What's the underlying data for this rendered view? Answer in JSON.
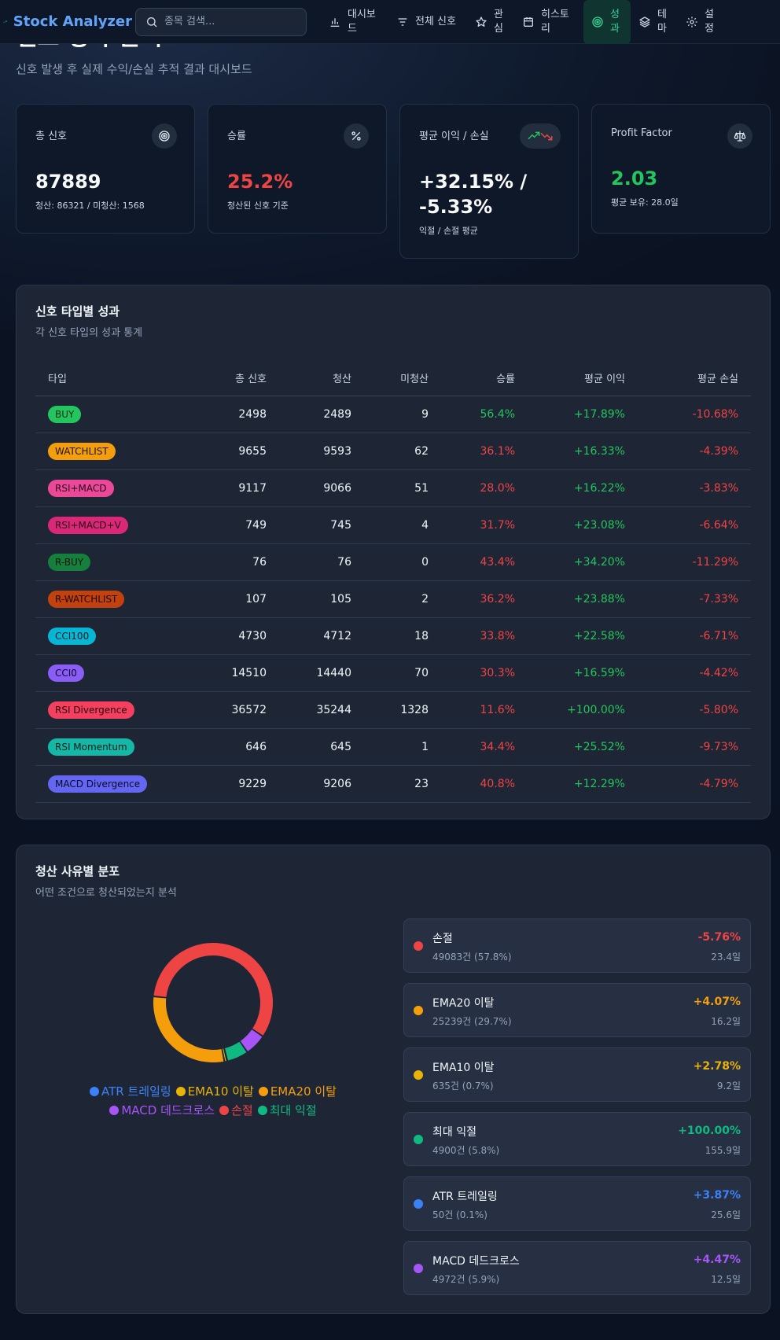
{
  "header": {
    "brand": "Stock Analyzer",
    "search_placeholder": "종목 검색...",
    "nav": [
      "대시보드",
      "전체 신호",
      "관심",
      "히스토리",
      "성과",
      "테마",
      "설정"
    ]
  },
  "page": {
    "title": "신호 성과 분석",
    "subtitle": "신호 발생 후 실제 수익/손실 추적 결과 대시보드"
  },
  "stats": [
    {
      "label": "총 신호",
      "value": "87889",
      "sub": "청산: 86321 / 미청산: 1568",
      "color": "#f8fafc",
      "icon": "target-icon"
    },
    {
      "label": "승률",
      "value": "25.2%",
      "sub": "청산된 신호 기준",
      "color": "#ef4444",
      "icon": "percent-icon"
    },
    {
      "label": "평균 이익 / 손실",
      "value": "+32.15% / -5.33%",
      "sub": "익절 / 손절 평균",
      "color": "#f8fafc",
      "icon": "trend-up-down-icon"
    },
    {
      "label": "Profit Factor",
      "value": "2.03",
      "sub": "평균 보유: 28.0일",
      "color": "#22c55e",
      "icon": "scale-icon"
    }
  ],
  "signal_table": {
    "title": "신호 타입별 성과",
    "subtitle": "각 신호 타입의 성과 통계",
    "columns": [
      "타입",
      "총 신호",
      "청산",
      "미청산",
      "승률",
      "평균 이익",
      "평균 손실"
    ],
    "rows": [
      {
        "type": "BUY",
        "badge_bg": "#22c55e",
        "badge_fg": "#052e16",
        "total": "2498",
        "closed": "2489",
        "open": "9",
        "win": "56.4%",
        "win_pos": true,
        "avg_gain": "+17.89%",
        "avg_loss": "-10.68%"
      },
      {
        "type": "WATCHLIST",
        "badge_bg": "#f59e0b",
        "badge_fg": "#1f1300",
        "total": "9655",
        "closed": "9593",
        "open": "62",
        "win": "36.1%",
        "win_pos": false,
        "avg_gain": "+16.33%",
        "avg_loss": "-4.39%"
      },
      {
        "type": "RSI+MACD",
        "badge_bg": "#ec4899",
        "badge_fg": "#2a0616",
        "total": "9117",
        "closed": "9066",
        "open": "51",
        "win": "28.0%",
        "win_pos": false,
        "avg_gain": "+16.22%",
        "avg_loss": "-3.83%"
      },
      {
        "type": "RSI+MACD+V",
        "badge_bg": "#db2777",
        "badge_fg": "#2a0616",
        "total": "749",
        "closed": "745",
        "open": "4",
        "win": "31.7%",
        "win_pos": false,
        "avg_gain": "+23.08%",
        "avg_loss": "-6.64%"
      },
      {
        "type": "R-BUY",
        "badge_bg": "#15803d",
        "badge_fg": "#03140a",
        "total": "76",
        "closed": "76",
        "open": "0",
        "win": "43.4%",
        "win_pos": false,
        "avg_gain": "+34.20%",
        "avg_loss": "-11.29%"
      },
      {
        "type": "R-WATCHLIST",
        "badge_bg": "#c2410c",
        "badge_fg": "#1f0800",
        "total": "107",
        "closed": "105",
        "open": "2",
        "win": "36.2%",
        "win_pos": false,
        "avg_gain": "+23.88%",
        "avg_loss": "-7.33%"
      },
      {
        "type": "CCI100",
        "badge_bg": "#06b6d4",
        "badge_fg": "#021a20",
        "total": "4730",
        "closed": "4712",
        "open": "18",
        "win": "33.8%",
        "win_pos": false,
        "avg_gain": "+22.58%",
        "avg_loss": "-6.71%"
      },
      {
        "type": "CCI0",
        "badge_bg": "#8b5cf6",
        "badge_fg": "#0f0424",
        "total": "14510",
        "closed": "14440",
        "open": "70",
        "win": "30.3%",
        "win_pos": false,
        "avg_gain": "+16.59%",
        "avg_loss": "-4.42%"
      },
      {
        "type": "RSI Divergence",
        "badge_bg": "#f43f5e",
        "badge_fg": "#2a0410",
        "total": "36572",
        "closed": "35244",
        "open": "1328",
        "win": "11.6%",
        "win_pos": false,
        "avg_gain": "+100.00%",
        "avg_loss": "-5.80%"
      },
      {
        "type": "RSI Momentum",
        "badge_bg": "#14b8a6",
        "badge_fg": "#021b18",
        "total": "646",
        "closed": "645",
        "open": "1",
        "win": "34.4%",
        "win_pos": false,
        "avg_gain": "+25.52%",
        "avg_loss": "-9.73%"
      },
      {
        "type": "MACD Divergence",
        "badge_bg": "#6366f1",
        "badge_fg": "#0a0a2a",
        "total": "9229",
        "closed": "9206",
        "open": "23",
        "win": "40.8%",
        "win_pos": false,
        "avg_gain": "+12.29%",
        "avg_loss": "-4.79%"
      }
    ]
  },
  "exit_panel": {
    "title": "청산 사유별 분포",
    "subtitle": "어떤 조건으로 청산되었는지 분석",
    "legend": [
      {
        "name": "ATR 트레일링",
        "color": "#3b82f6"
      },
      {
        "name": "EMA10 이탈",
        "color": "#eab308"
      },
      {
        "name": "EMA20 이탈",
        "color": "#f59e0b"
      },
      {
        "name": "MACD 데드크로스",
        "color": "#a855f7"
      },
      {
        "name": "손절",
        "color": "#ef4444"
      },
      {
        "name": "최대 익절",
        "color": "#10b981"
      }
    ],
    "reasons": [
      {
        "name": "손절",
        "count": "49083건 (57.8%)",
        "pct": "-5.76%",
        "days": "23.4일",
        "color": "#ef4444"
      },
      {
        "name": "EMA20 이탈",
        "count": "25239건 (29.7%)",
        "pct": "+4.07%",
        "days": "16.2일",
        "color": "#f59e0b"
      },
      {
        "name": "EMA10 이탈",
        "count": "635건 (0.7%)",
        "pct": "+2.78%",
        "days": "9.2일",
        "color": "#eab308"
      },
      {
        "name": "최대 익절",
        "count": "4900건 (5.8%)",
        "pct": "+100.00%",
        "days": "155.9일",
        "color": "#10b981"
      },
      {
        "name": "ATR 트레일링",
        "count": "50건 (0.1%)",
        "pct": "+3.87%",
        "days": "25.6일",
        "color": "#3b82f6"
      },
      {
        "name": "MACD 데드크로스",
        "count": "4972건 (5.9%)",
        "pct": "+4.47%",
        "days": "12.5일",
        "color": "#a855f7"
      }
    ]
  },
  "chart_data": {
    "type": "pie",
    "donut": true,
    "categories": [
      "손절",
      "MACD 데드크로스",
      "최대 익절",
      "ATR 트레일링",
      "EMA10 이탈",
      "EMA20 이탈"
    ],
    "values": [
      57.8,
      5.9,
      5.8,
      0.1,
      0.7,
      29.7
    ],
    "colors": [
      "#ef4444",
      "#a855f7",
      "#10b981",
      "#3b82f6",
      "#eab308",
      "#f59e0b"
    ],
    "legend": "bottom"
  }
}
